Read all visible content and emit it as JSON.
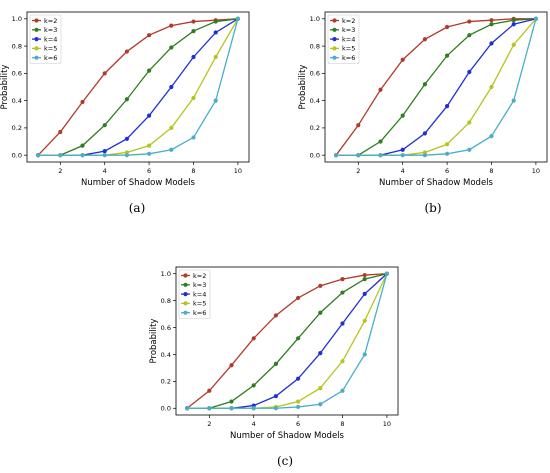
{
  "colors": {
    "k2": "#b23a2a",
    "k3": "#2e7d1f",
    "k4": "#1f2fd6",
    "k5": "#b8c41e",
    "k6": "#4aaec8"
  },
  "chart_data": [
    {
      "type": "line",
      "caption": "(a)",
      "xlabel": "Number of Shadow Models",
      "ylabel": "Probability",
      "xlim": [
        0.5,
        10.5
      ],
      "ylim": [
        -0.05,
        1.05
      ],
      "xticks": [
        "2",
        "4",
        "6",
        "8",
        "10"
      ],
      "yticks": [
        "0.0",
        "0.2",
        "0.4",
        "0.6",
        "0.8",
        "1.0"
      ],
      "legend_position": "top-left",
      "grid": false,
      "x": [
        1,
        2,
        3,
        4,
        5,
        6,
        7,
        8,
        9,
        10
      ],
      "series": [
        {
          "name": "k=2",
          "values": [
            0.0,
            0.17,
            0.39,
            0.6,
            0.76,
            0.88,
            0.95,
            0.98,
            0.99,
            1.0
          ]
        },
        {
          "name": "k=3",
          "values": [
            0.0,
            0.0,
            0.07,
            0.22,
            0.41,
            0.62,
            0.79,
            0.91,
            0.98,
            1.0
          ]
        },
        {
          "name": "k=4",
          "values": [
            0.0,
            0.0,
            0.0,
            0.03,
            0.12,
            0.29,
            0.5,
            0.72,
            0.9,
            1.0
          ]
        },
        {
          "name": "k=5",
          "values": [
            0.0,
            0.0,
            0.0,
            0.0,
            0.02,
            0.07,
            0.2,
            0.42,
            0.72,
            1.0
          ]
        },
        {
          "name": "k=6",
          "values": [
            0.0,
            0.0,
            0.0,
            0.0,
            0.0,
            0.01,
            0.04,
            0.13,
            0.4,
            1.0
          ]
        }
      ]
    },
    {
      "type": "line",
      "caption": "(b)",
      "xlabel": "Number of Shadow Models",
      "ylabel": "Probability",
      "xlim": [
        0.5,
        10.5
      ],
      "ylim": [
        -0.05,
        1.05
      ],
      "xticks": [
        "2",
        "4",
        "6",
        "8",
        "10"
      ],
      "yticks": [
        "0.0",
        "0.2",
        "0.4",
        "0.6",
        "0.8",
        "1.0"
      ],
      "legend_position": "top-left",
      "grid": false,
      "x": [
        1,
        2,
        3,
        4,
        5,
        6,
        7,
        8,
        9,
        10
      ],
      "series": [
        {
          "name": "k=2",
          "values": [
            0.0,
            0.22,
            0.48,
            0.7,
            0.85,
            0.94,
            0.98,
            0.99,
            1.0,
            1.0
          ]
        },
        {
          "name": "k=3",
          "values": [
            0.0,
            0.0,
            0.1,
            0.29,
            0.52,
            0.73,
            0.88,
            0.96,
            0.99,
            1.0
          ]
        },
        {
          "name": "k=4",
          "values": [
            0.0,
            0.0,
            0.0,
            0.04,
            0.16,
            0.36,
            0.61,
            0.82,
            0.96,
            1.0
          ]
        },
        {
          "name": "k=5",
          "values": [
            0.0,
            0.0,
            0.0,
            0.0,
            0.02,
            0.08,
            0.24,
            0.5,
            0.81,
            1.0
          ]
        },
        {
          "name": "k=6",
          "values": [
            0.0,
            0.0,
            0.0,
            0.0,
            0.0,
            0.01,
            0.04,
            0.14,
            0.4,
            1.0
          ]
        }
      ]
    },
    {
      "type": "line",
      "caption": "(c)",
      "xlabel": "Number of Shadow Models",
      "ylabel": "Probability",
      "xlim": [
        0.5,
        10.5
      ],
      "ylim": [
        -0.05,
        1.05
      ],
      "xticks": [
        "2",
        "4",
        "6",
        "8",
        "10"
      ],
      "yticks": [
        "0.0",
        "0.2",
        "0.4",
        "0.6",
        "0.8",
        "1.0"
      ],
      "legend_position": "top-left",
      "grid": false,
      "x": [
        1,
        2,
        3,
        4,
        5,
        6,
        7,
        8,
        9,
        10
      ],
      "series": [
        {
          "name": "k=2",
          "values": [
            0.0,
            0.13,
            0.32,
            0.52,
            0.69,
            0.82,
            0.91,
            0.96,
            0.99,
            1.0
          ]
        },
        {
          "name": "k=3",
          "values": [
            0.0,
            0.0,
            0.05,
            0.17,
            0.33,
            0.52,
            0.71,
            0.86,
            0.96,
            1.0
          ]
        },
        {
          "name": "k=4",
          "values": [
            0.0,
            0.0,
            0.0,
            0.02,
            0.09,
            0.22,
            0.41,
            0.63,
            0.85,
            1.0
          ]
        },
        {
          "name": "k=5",
          "values": [
            0.0,
            0.0,
            0.0,
            0.0,
            0.01,
            0.05,
            0.15,
            0.35,
            0.65,
            1.0
          ]
        },
        {
          "name": "k=6",
          "values": [
            0.0,
            0.0,
            0.0,
            0.0,
            0.0,
            0.01,
            0.03,
            0.13,
            0.4,
            1.0
          ]
        }
      ]
    }
  ]
}
